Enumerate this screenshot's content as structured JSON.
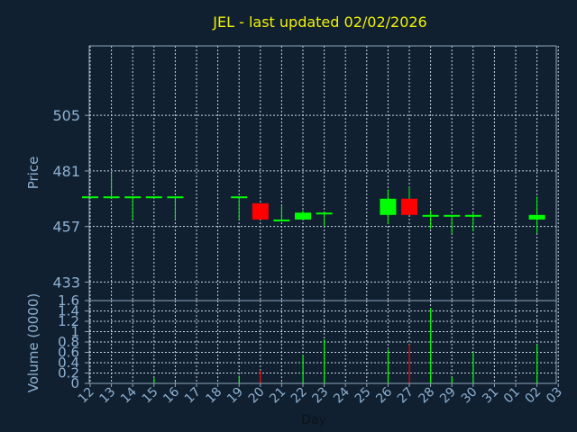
{
  "chart_data": [
    {
      "type": "candlestick",
      "title": "JEL - last updated 02/02/2026",
      "ylabel": "Price",
      "ylim": [
        425,
        535
      ],
      "yticks": [
        433,
        457,
        481,
        505
      ],
      "grid": true,
      "up_color": "#00ff00",
      "down_color": "#ff0000",
      "categories": [
        "12",
        "13",
        "14",
        "15",
        "16",
        "17",
        "18",
        "19",
        "20",
        "21",
        "22",
        "23",
        "24",
        "25",
        "26",
        "27",
        "28",
        "29",
        "30",
        "31",
        "01",
        "02",
        "03"
      ],
      "candles": [
        {
          "x": "12",
          "open": 470,
          "high": 470,
          "low": 470,
          "close": 470
        },
        {
          "x": "13",
          "open": 470,
          "high": 480,
          "low": 470,
          "close": 470
        },
        {
          "x": "14",
          "open": 470,
          "high": 470,
          "low": 460,
          "close": 470
        },
        {
          "x": "15",
          "open": 470,
          "high": 470,
          "low": 470,
          "close": 470
        },
        {
          "x": "16",
          "open": 470,
          "high": 470,
          "low": 460,
          "close": 470
        },
        {
          "x": "19",
          "open": 470,
          "high": 470,
          "low": 460,
          "close": 470
        },
        {
          "x": "20",
          "open": 467,
          "high": 467,
          "low": 460,
          "close": 460
        },
        {
          "x": "21",
          "open": 460,
          "high": 466,
          "low": 460,
          "close": 460
        },
        {
          "x": "22",
          "open": 460,
          "high": 464,
          "low": 460,
          "close": 463
        },
        {
          "x": "23",
          "open": 463,
          "high": 463,
          "low": 457,
          "close": 463
        },
        {
          "x": "26",
          "open": 462,
          "high": 473,
          "low": 458,
          "close": 469
        },
        {
          "x": "27",
          "open": 469,
          "high": 474,
          "low": 462,
          "close": 462
        },
        {
          "x": "28",
          "open": 462,
          "high": 464,
          "low": 456,
          "close": 462
        },
        {
          "x": "29",
          "open": 462,
          "high": 462,
          "low": 454,
          "close": 462
        },
        {
          "x": "30",
          "open": 462,
          "high": 463,
          "low": 455,
          "close": 462
        },
        {
          "x": "02",
          "open": 460,
          "high": 470,
          "low": 454,
          "close": 462
        }
      ]
    },
    {
      "type": "bar",
      "xlabel": "Day",
      "ylabel": "Volume (0000)",
      "ylim": [
        0,
        1.6
      ],
      "yticks": [
        "0",
        "0.2",
        "0.4",
        "0.6",
        "0.8",
        "1",
        "1.2",
        "1.4",
        "1.6"
      ],
      "grid": true,
      "categories": [
        "12",
        "13",
        "14",
        "15",
        "16",
        "17",
        "18",
        "19",
        "20",
        "21",
        "22",
        "23",
        "24",
        "25",
        "26",
        "27",
        "28",
        "29",
        "30",
        "31",
        "01",
        "02",
        "03"
      ],
      "bars": [
        {
          "x": "13",
          "value": 0.01,
          "color": "#00ff00"
        },
        {
          "x": "14",
          "value": 0.01,
          "color": "#00ff00"
        },
        {
          "x": "15",
          "value": 0.1,
          "color": "#00ff00"
        },
        {
          "x": "16",
          "value": 0.03,
          "color": "#00ff00"
        },
        {
          "x": "19",
          "value": 0.15,
          "color": "#00ff00"
        },
        {
          "x": "20",
          "value": 0.25,
          "color": "#ff0000"
        },
        {
          "x": "21",
          "value": 0.02,
          "color": "#00ff00"
        },
        {
          "x": "22",
          "value": 0.55,
          "color": "#00ff00"
        },
        {
          "x": "23",
          "value": 0.85,
          "color": "#00ff00"
        },
        {
          "x": "26",
          "value": 0.65,
          "color": "#00ff00"
        },
        {
          "x": "27",
          "value": 0.75,
          "color": "#ff0000"
        },
        {
          "x": "28",
          "value": 1.45,
          "color": "#00ff00"
        },
        {
          "x": "29",
          "value": 0.12,
          "color": "#00ff00"
        },
        {
          "x": "30",
          "value": 0.6,
          "color": "#00ff00"
        },
        {
          "x": "02",
          "value": 0.75,
          "color": "#00ff00"
        }
      ]
    }
  ]
}
